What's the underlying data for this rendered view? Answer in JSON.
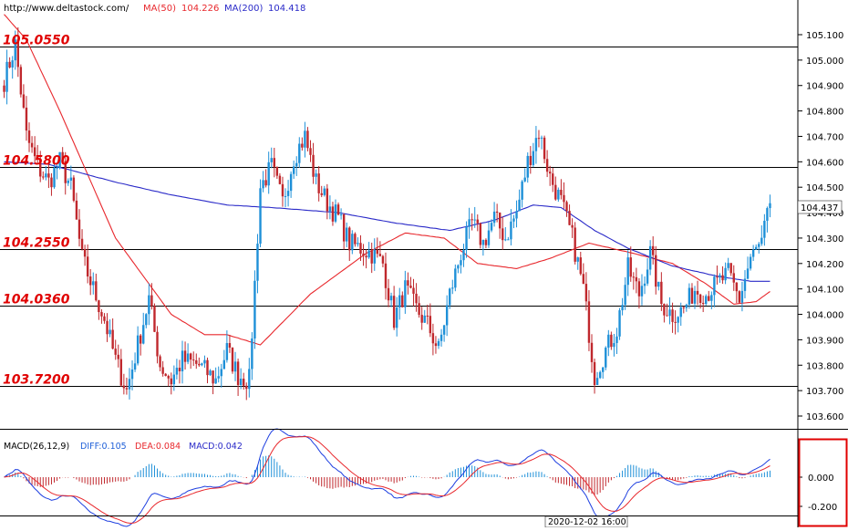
{
  "header": {
    "site": "http://www.deltastock.com/",
    "ma50_label": "MA(50)",
    "ma50_value": "104.226",
    "ma200_label": "MA(200)",
    "ma200_value": "104.418"
  },
  "macd_header": {
    "title": "MACD(26,12,9)",
    "diff_label": "DIFF:0.105",
    "dea_label": "DEA:0.084",
    "macd_label": "MACD:0.042"
  },
  "current_price": "104.437",
  "time_label": "2020-12-02 16:00",
  "colors": {
    "up": "#1e90d8",
    "down": "#c0282d",
    "ma50": "#e8282d",
    "ma200": "#2a2ac8",
    "level": "#e00000",
    "frame_highlight": "#e00000"
  },
  "chart_data": {
    "type": "candlestick",
    "ylim": [
      103.56,
      105.15
    ],
    "y_ticks": [
      "105.100",
      "105.000",
      "104.900",
      "104.800",
      "104.700",
      "104.600",
      "104.500",
      "104.400",
      "104.300",
      "104.200",
      "104.100",
      "104.000",
      "103.900",
      "103.800",
      "103.700",
      "103.600"
    ],
    "levels": [
      "105.0550",
      "104.5800",
      "104.2550",
      "104.0360",
      "103.7200"
    ],
    "candles": [],
    "ma50": [],
    "ma200": [],
    "macd": {
      "ylim": [
        -0.3,
        0.26
      ],
      "y_ticks": [
        "0.000",
        "-0.200"
      ],
      "diff": [],
      "dea": [],
      "hist": []
    }
  }
}
